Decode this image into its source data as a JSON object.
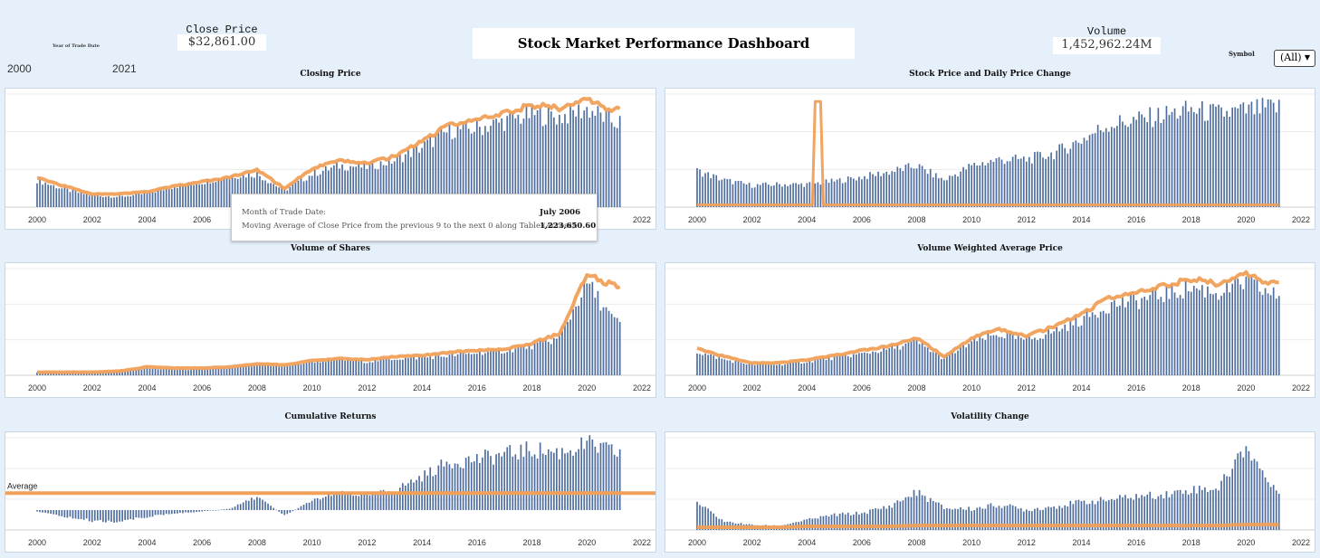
{
  "header": {
    "title": "Stock Market Performance Dashboard",
    "close_price_label": "Close Price",
    "close_price_value": "$32,861.00",
    "volume_label": "Volume",
    "volume_value": "1,452,962.24M",
    "year_filter_label": "Year of Trade Date",
    "year_start": "2000",
    "year_end": "2021",
    "symbol_label": "Symbol",
    "symbol_value": "(All)"
  },
  "tooltip": {
    "line1_label": "Month of Trade Date:",
    "line1_value": "July 2006",
    "line2_label": "Moving Average of Close Price from the previous 9 to the next 0 along Table (Across):",
    "line2_value": "1,223,650.60"
  },
  "colors": {
    "bar": "#4e6d9e",
    "line": "#f0a058",
    "background": "#e6f0fb"
  },
  "chart_data": [
    {
      "type": "bar",
      "title": "Closing Price",
      "overlay": "line",
      "x_ticks": [
        "2000",
        "2002",
        "2004",
        "2006",
        "2008",
        "2010",
        "2012",
        "2014",
        "2016",
        "2018",
        "2020",
        "2022"
      ],
      "x": [
        2000,
        2001,
        2002,
        2003,
        2004,
        2005,
        2006,
        2007,
        2008,
        2009,
        2010,
        2011,
        2012,
        2013,
        2014,
        2015,
        2016,
        2017,
        2018,
        2019,
        2020,
        2021
      ],
      "bar_values": [
        0.26,
        0.17,
        0.11,
        0.1,
        0.13,
        0.2,
        0.24,
        0.3,
        0.32,
        0.16,
        0.32,
        0.4,
        0.39,
        0.45,
        0.58,
        0.74,
        0.76,
        0.83,
        0.9,
        0.87,
        0.95,
        0.82
      ],
      "line_values": [
        0.27,
        0.19,
        0.12,
        0.12,
        0.14,
        0.19,
        0.23,
        0.27,
        0.34,
        0.17,
        0.35,
        0.42,
        0.4,
        0.46,
        0.6,
        0.75,
        0.79,
        0.85,
        0.93,
        0.9,
        0.97,
        0.88
      ]
    },
    {
      "type": "bar",
      "title": "Stock Price and Daily Price Change",
      "overlay": "line",
      "x_ticks": [
        "2000",
        "2002",
        "2004",
        "2006",
        "2008",
        "2010",
        "2012",
        "2014",
        "2016",
        "2018",
        "2020",
        "2022"
      ],
      "x": [
        2000,
        2001,
        2002,
        2003,
        2004,
        2005,
        2006,
        2007,
        2008,
        2009,
        2010,
        2011,
        2012,
        2013,
        2014,
        2015,
        2016,
        2017,
        2018,
        2019,
        2020,
        2021
      ],
      "bar_values": [
        0.35,
        0.26,
        0.21,
        0.22,
        0.22,
        0.25,
        0.29,
        0.34,
        0.4,
        0.26,
        0.4,
        0.46,
        0.46,
        0.52,
        0.65,
        0.8,
        0.84,
        0.89,
        0.94,
        0.9,
        0.93,
        0.96
      ],
      "line_values": [
        0.02,
        0.02,
        0.02,
        0.02,
        0.95,
        0.03,
        0.02,
        0.02,
        0.02,
        0.02,
        0.02,
        0.02,
        0.02,
        0.02,
        0.02,
        0.02,
        0.02,
        0.02,
        0.02,
        0.02,
        0.02,
        0.02
      ]
    },
    {
      "type": "bar",
      "title": "Volume of Shares",
      "overlay": "line",
      "x_ticks": [
        "2000",
        "2002",
        "2004",
        "2006",
        "2008",
        "2010",
        "2012",
        "2014",
        "2016",
        "2018",
        "2020",
        "2022"
      ],
      "x": [
        2000,
        2001,
        2002,
        2003,
        2004,
        2005,
        2006,
        2007,
        2008,
        2009,
        2010,
        2011,
        2012,
        2013,
        2014,
        2015,
        2016,
        2017,
        2018,
        2019,
        2020,
        2021
      ],
      "bar_values": [
        0.03,
        0.03,
        0.03,
        0.04,
        0.07,
        0.06,
        0.06,
        0.07,
        0.11,
        0.09,
        0.14,
        0.16,
        0.14,
        0.17,
        0.18,
        0.2,
        0.23,
        0.25,
        0.3,
        0.38,
        0.95,
        0.55
      ],
      "line_values": [
        0.03,
        0.03,
        0.03,
        0.04,
        0.08,
        0.07,
        0.07,
        0.08,
        0.11,
        0.1,
        0.14,
        0.16,
        0.15,
        0.18,
        0.19,
        0.22,
        0.24,
        0.25,
        0.31,
        0.4,
        0.97,
        0.86
      ]
    },
    {
      "type": "bar",
      "title": "Volume Weighted Average Price",
      "overlay": "line",
      "x_ticks": [
        "2000",
        "2002",
        "2004",
        "2006",
        "2008",
        "2010",
        "2012",
        "2014",
        "2016",
        "2018",
        "2020",
        "2022"
      ],
      "x": [
        2000,
        2001,
        2002,
        2003,
        2004,
        2005,
        2006,
        2007,
        2008,
        2009,
        2010,
        2011,
        2012,
        2013,
        2014,
        2015,
        2016,
        2017,
        2018,
        2019,
        2020,
        2021
      ],
      "bar_values": [
        0.24,
        0.16,
        0.11,
        0.11,
        0.14,
        0.18,
        0.22,
        0.27,
        0.34,
        0.17,
        0.34,
        0.42,
        0.36,
        0.45,
        0.57,
        0.72,
        0.76,
        0.83,
        0.9,
        0.85,
        0.95,
        0.82
      ],
      "line_values": [
        0.26,
        0.18,
        0.12,
        0.12,
        0.15,
        0.19,
        0.24,
        0.28,
        0.36,
        0.18,
        0.36,
        0.44,
        0.38,
        0.47,
        0.59,
        0.75,
        0.79,
        0.86,
        0.93,
        0.88,
        0.97,
        0.88
      ]
    },
    {
      "type": "bar",
      "title": "Cumulative Returns",
      "reference_line": {
        "label": "Average",
        "value": 0.24
      },
      "x_ticks": [
        "2000",
        "2002",
        "2004",
        "2006",
        "2008",
        "2010",
        "2012",
        "2014",
        "2016",
        "2018",
        "2020",
        "2022"
      ],
      "x": [
        2000,
        2001,
        2002,
        2003,
        2004,
        2005,
        2006,
        2007,
        2008,
        2009,
        2010,
        2011,
        2012,
        2013,
        2014,
        2015,
        2016,
        2017,
        2018,
        2019,
        2020,
        2021
      ],
      "bar_values": [
        -0.02,
        -0.1,
        -0.16,
        -0.17,
        -0.1,
        -0.05,
        -0.02,
        0.02,
        0.2,
        -0.08,
        0.14,
        0.25,
        0.22,
        0.3,
        0.5,
        0.72,
        0.76,
        0.83,
        0.9,
        0.86,
        0.98,
        0.86
      ]
    },
    {
      "type": "bar",
      "title": "Volatility Change",
      "overlay": "line",
      "x_ticks": [
        "2000",
        "2002",
        "2004",
        "2006",
        "2008",
        "2010",
        "2012",
        "2014",
        "2016",
        "2018",
        "2020",
        "2022"
      ],
      "x": [
        2000,
        2001,
        2002,
        2003,
        2004,
        2005,
        2006,
        2007,
        2008,
        2009,
        2010,
        2011,
        2012,
        2013,
        2014,
        2015,
        2016,
        2017,
        2018,
        2019,
        2020,
        2021
      ],
      "bar_values": [
        0.32,
        0.1,
        0.06,
        0.05,
        0.12,
        0.18,
        0.2,
        0.28,
        0.45,
        0.26,
        0.25,
        0.3,
        0.24,
        0.28,
        0.33,
        0.36,
        0.4,
        0.42,
        0.48,
        0.5,
        1.0,
        0.48
      ],
      "line_values": [
        0.03,
        0.03,
        0.03,
        0.03,
        0.04,
        0.04,
        0.04,
        0.04,
        0.05,
        0.05,
        0.05,
        0.05,
        0.05,
        0.05,
        0.05,
        0.05,
        0.05,
        0.05,
        0.05,
        0.05,
        0.06,
        0.06
      ]
    }
  ]
}
